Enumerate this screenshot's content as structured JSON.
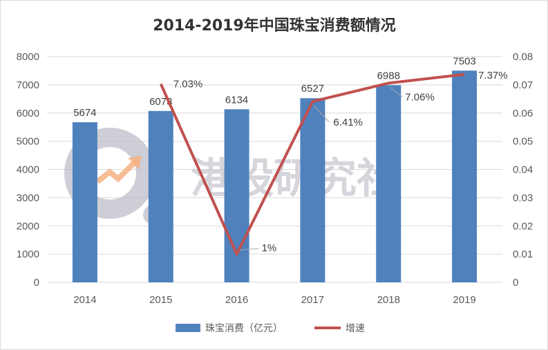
{
  "chart_data": {
    "type": "bar",
    "title": "2014-2019年中国珠宝消费额情况",
    "categories": [
      "2014",
      "2015",
      "2016",
      "2017",
      "2018",
      "2019"
    ],
    "series": [
      {
        "name": "珠宝消费（亿元）",
        "type": "bar",
        "axis": "left",
        "values": [
          5674,
          6073,
          6134,
          6527,
          6988,
          7503
        ],
        "labels": [
          "5674",
          "6073",
          "6134",
          "6527",
          "6988",
          "7503"
        ],
        "color": "#4f81bd"
      },
      {
        "name": "增速",
        "type": "line",
        "axis": "right",
        "values": [
          null,
          0.0703,
          0.01,
          0.0641,
          0.0706,
          0.0737
        ],
        "labels": [
          null,
          "7.03%",
          "1%",
          "6.41%",
          "7.06%",
          "7.37%"
        ],
        "color": "#c0504d"
      }
    ],
    "y_left": {
      "ylim": [
        0,
        8000
      ],
      "ticks": [
        "0",
        "1000",
        "2000",
        "3000",
        "4000",
        "5000",
        "6000",
        "7000",
        "8000"
      ]
    },
    "y_right": {
      "ylim": [
        0,
        0.08
      ],
      "ticks": [
        "0",
        "0.01",
        "0.02",
        "0.03",
        "0.04",
        "0.05",
        "0.06",
        "0.07",
        "0.08"
      ]
    },
    "grid": true,
    "legend": "bottom"
  },
  "watermark": {
    "text": "港股研究社"
  }
}
